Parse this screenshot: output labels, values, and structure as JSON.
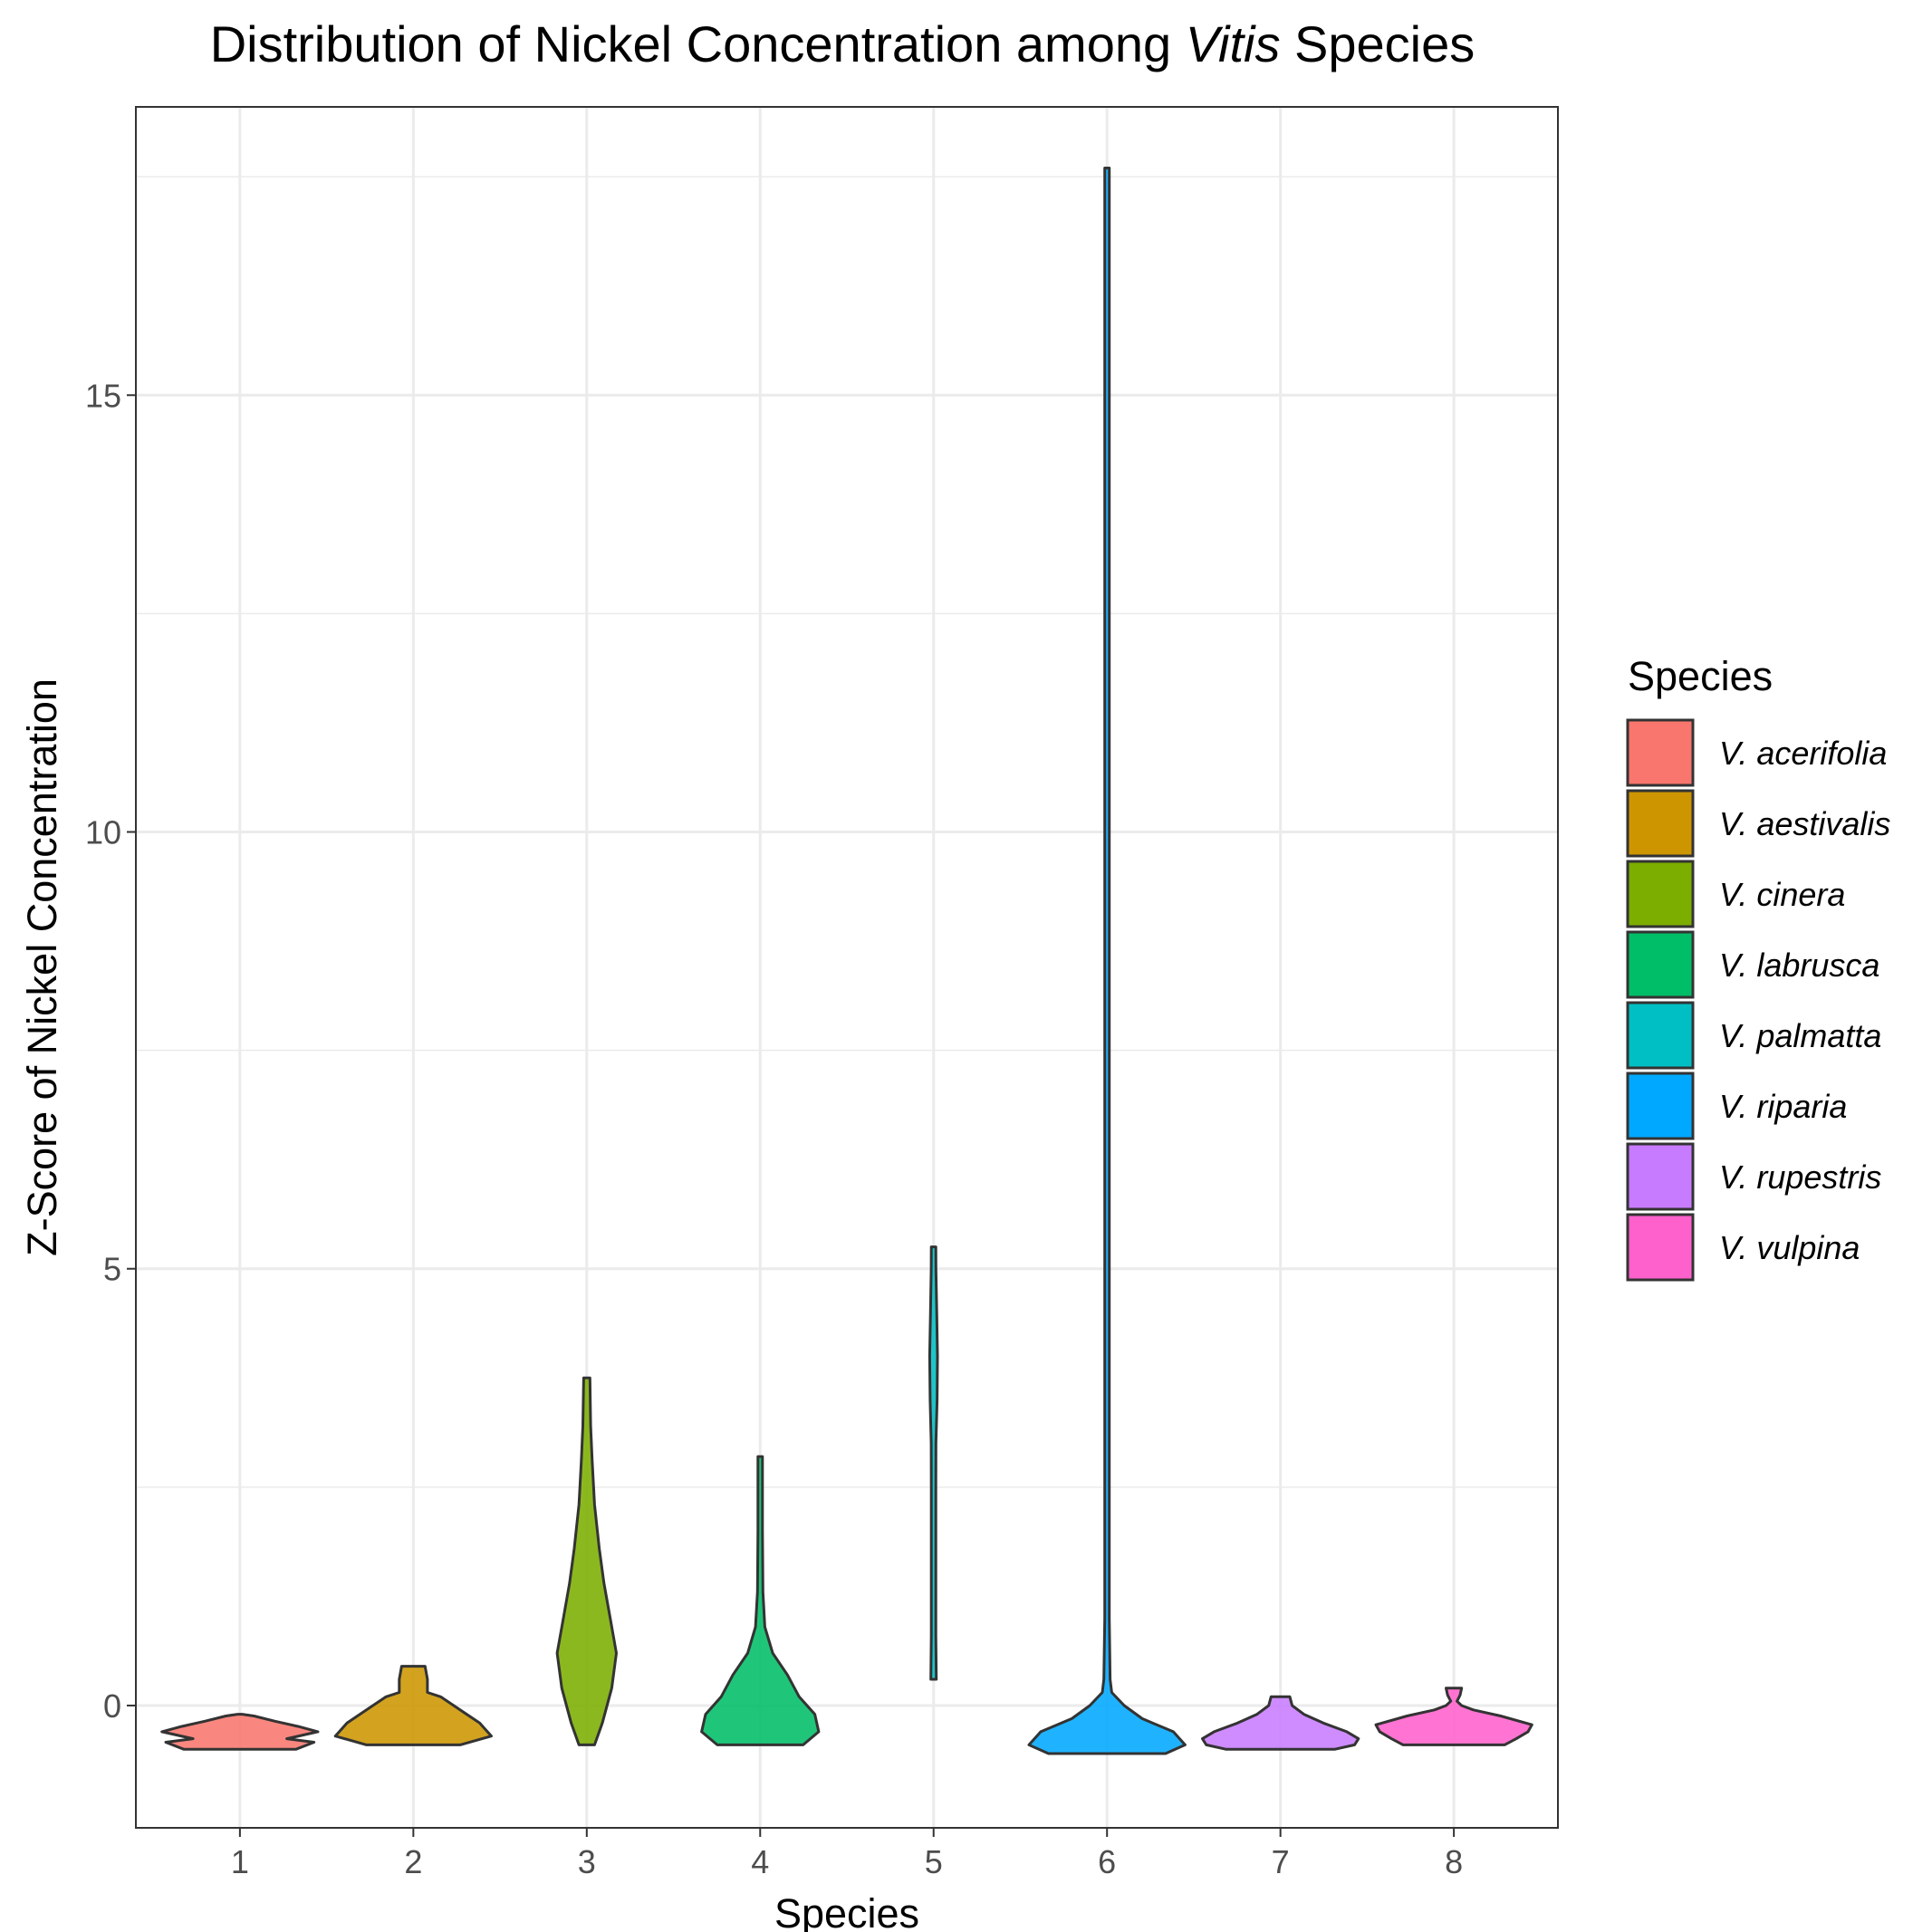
{
  "chart_data": {
    "type": "violin",
    "title": {
      "prefix": "Distribution of Nickel Concentration among ",
      "italic": "Vitis",
      "suffix": " Species"
    },
    "xlabel": "Species",
    "ylabel": "Z-Score of Nickel Concentration",
    "ylim": [
      -1.4,
      18.3
    ],
    "y_ticks": [
      0,
      5,
      10,
      15
    ],
    "y_minor_ticks": [
      2.5,
      7.5,
      12.5,
      17.5
    ],
    "categories": [
      "1",
      "2",
      "3",
      "4",
      "5",
      "6",
      "7",
      "8"
    ],
    "grid": true,
    "legend": {
      "title": "Species",
      "position": "right",
      "items": [
        {
          "label": "V. acerifolia",
          "color": "#F8766D"
        },
        {
          "label": "V. aestivalis",
          "color": "#CD9600"
        },
        {
          "label": "V. cinera",
          "color": "#7CAE00"
        },
        {
          "label": "V. labrusca",
          "color": "#00BE67"
        },
        {
          "label": "V. palmatta",
          "color": "#00BFC4"
        },
        {
          "label": "V. riparia",
          "color": "#00A9FF"
        },
        {
          "label": "V. rupestris",
          "color": "#C77CFF"
        },
        {
          "label": "V. vulpina",
          "color": "#FF61CC"
        }
      ]
    },
    "series": [
      {
        "category": "1",
        "color": "#F8766D",
        "min": -0.5,
        "max": -0.1,
        "profile": [
          [
            -0.5,
            0.72
          ],
          [
            -0.42,
            0.95
          ],
          [
            -0.38,
            0.6
          ],
          [
            -0.3,
            1.0
          ],
          [
            -0.24,
            0.75
          ],
          [
            -0.18,
            0.45
          ],
          [
            -0.12,
            0.18
          ],
          [
            -0.1,
            0.0
          ]
        ]
      },
      {
        "category": "2",
        "color": "#CD9600",
        "min": -0.45,
        "max": 0.45,
        "profile": [
          [
            -0.45,
            0.6
          ],
          [
            -0.35,
            1.0
          ],
          [
            -0.2,
            0.85
          ],
          [
            -0.05,
            0.6
          ],
          [
            0.1,
            0.35
          ],
          [
            0.15,
            0.18
          ],
          [
            0.3,
            0.18
          ],
          [
            0.45,
            0.15
          ]
        ]
      },
      {
        "category": "3",
        "color": "#7CAE00",
        "min": -0.45,
        "max": 3.75,
        "profile": [
          [
            -0.45,
            0.1
          ],
          [
            -0.2,
            0.2
          ],
          [
            0.2,
            0.32
          ],
          [
            0.6,
            0.38
          ],
          [
            1.0,
            0.3
          ],
          [
            1.4,
            0.22
          ],
          [
            1.8,
            0.16
          ],
          [
            2.3,
            0.1
          ],
          [
            2.8,
            0.07
          ],
          [
            3.2,
            0.05
          ],
          [
            3.75,
            0.04
          ]
        ]
      },
      {
        "category": "4",
        "color": "#00BE67",
        "min": -0.45,
        "max": 2.85,
        "profile": [
          [
            -0.45,
            0.55
          ],
          [
            -0.3,
            0.75
          ],
          [
            -0.1,
            0.7
          ],
          [
            0.1,
            0.5
          ],
          [
            0.35,
            0.35
          ],
          [
            0.6,
            0.16
          ],
          [
            0.9,
            0.06
          ],
          [
            1.3,
            0.035
          ],
          [
            2.0,
            0.025
          ],
          [
            2.85,
            0.025
          ]
        ]
      },
      {
        "category": "5",
        "color": "#00BFC4",
        "min": 0.3,
        "max": 5.25,
        "profile": [
          [
            0.3,
            0.035
          ],
          [
            0.8,
            0.025
          ],
          [
            1.5,
            0.02
          ],
          [
            2.5,
            0.022
          ],
          [
            3.0,
            0.03
          ],
          [
            3.5,
            0.045
          ],
          [
            4.0,
            0.05
          ],
          [
            4.5,
            0.04
          ],
          [
            5.0,
            0.03
          ],
          [
            5.25,
            0.02
          ]
        ]
      },
      {
        "category": "6",
        "color": "#00A9FF",
        "min": -0.55,
        "max": 17.6,
        "profile": [
          [
            -0.55,
            0.75
          ],
          [
            -0.45,
            1.0
          ],
          [
            -0.3,
            0.85
          ],
          [
            -0.15,
            0.45
          ],
          [
            0.0,
            0.22
          ],
          [
            0.15,
            0.06
          ],
          [
            0.3,
            0.04
          ],
          [
            1.0,
            0.018
          ],
          [
            5.0,
            0.015
          ],
          [
            17.6,
            0.015
          ]
        ]
      },
      {
        "category": "7",
        "color": "#C77CFF",
        "min": -0.5,
        "max": 0.1,
        "profile": [
          [
            -0.5,
            0.7
          ],
          [
            -0.45,
            0.95
          ],
          [
            -0.38,
            1.0
          ],
          [
            -0.3,
            0.85
          ],
          [
            -0.2,
            0.55
          ],
          [
            -0.1,
            0.3
          ],
          [
            0.0,
            0.15
          ],
          [
            0.1,
            0.12
          ]
        ]
      },
      {
        "category": "8",
        "color": "#FF61CC",
        "min": -0.45,
        "max": 0.2,
        "profile": [
          [
            -0.45,
            0.65
          ],
          [
            -0.38,
            0.8
          ],
          [
            -0.3,
            0.95
          ],
          [
            -0.22,
            1.0
          ],
          [
            -0.12,
            0.6
          ],
          [
            -0.05,
            0.25
          ],
          [
            0.0,
            0.1
          ],
          [
            0.05,
            0.04
          ],
          [
            0.12,
            0.08
          ],
          [
            0.2,
            0.1
          ]
        ]
      }
    ]
  }
}
